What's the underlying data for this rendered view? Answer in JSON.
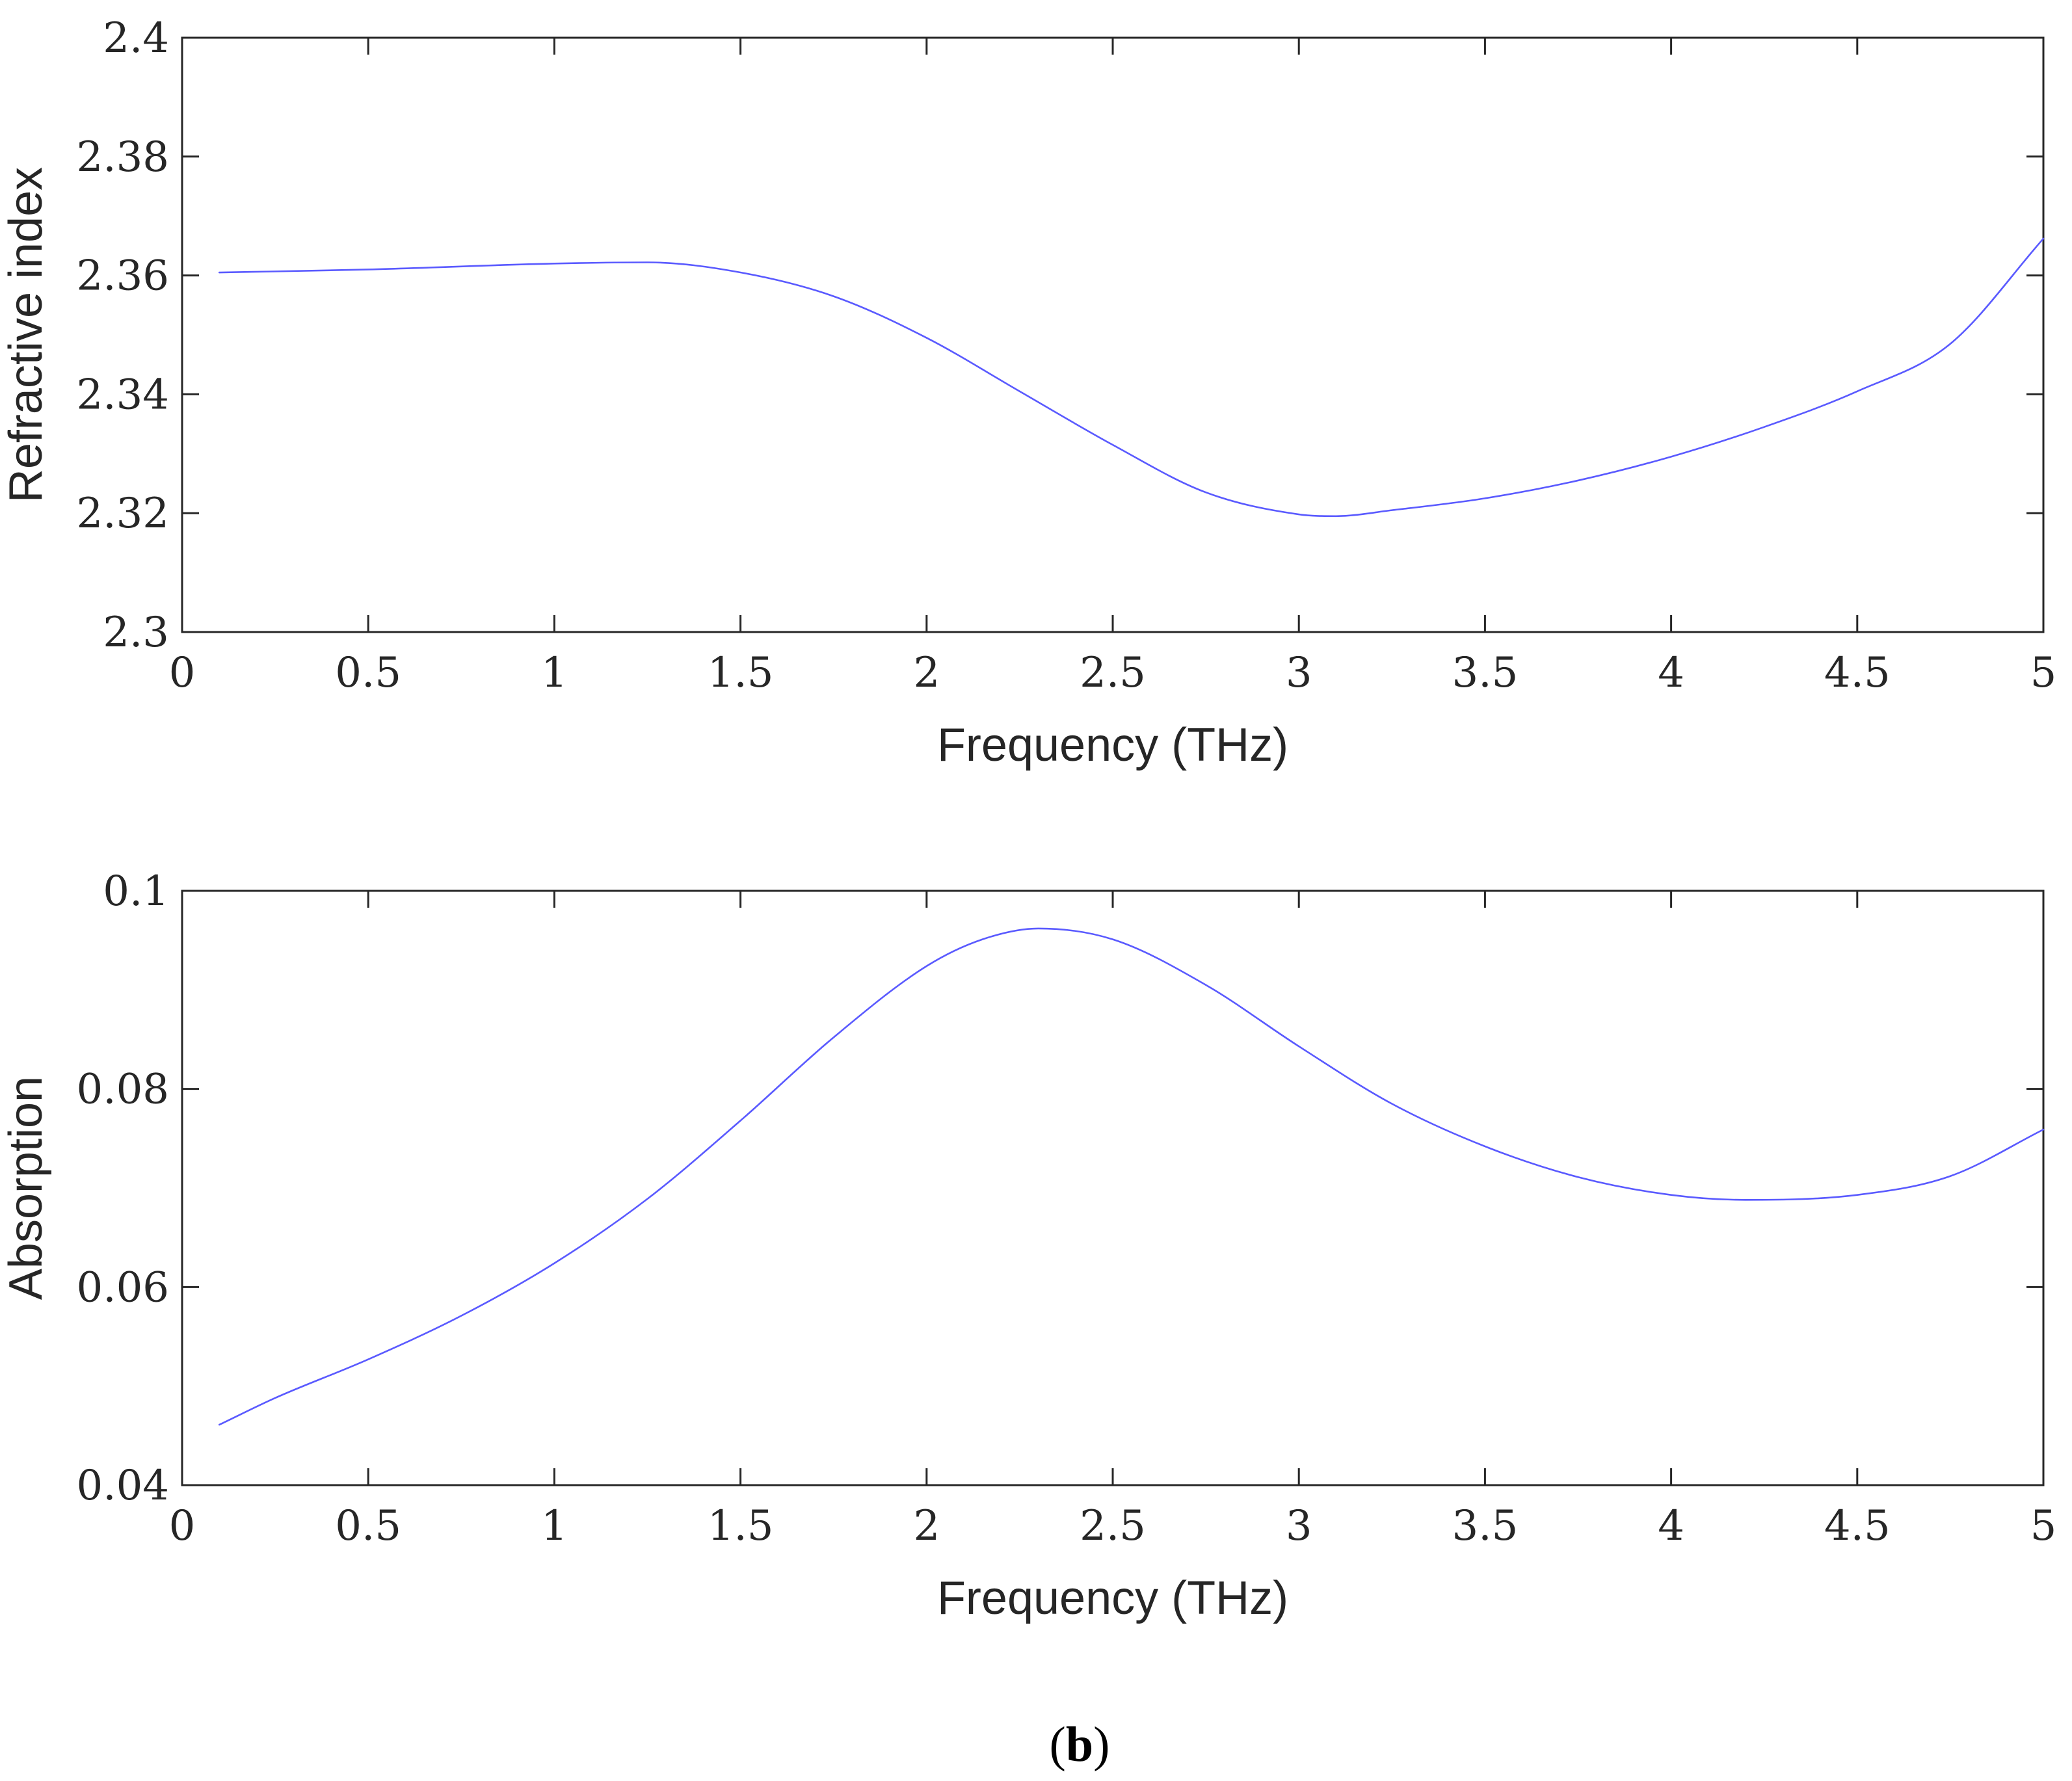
{
  "chart_data": [
    {
      "type": "line",
      "title": "",
      "xlabel": "Frequency (THz)",
      "ylabel": "Refractive index",
      "xlim": [
        0,
        5
      ],
      "ylim": [
        2.3,
        2.4
      ],
      "xticks": [
        0,
        0.5,
        1,
        1.5,
        2,
        2.5,
        3,
        3.5,
        4,
        4.5,
        5
      ],
      "xtick_labels": [
        "0",
        "0.5",
        "1",
        "1.5",
        "2",
        "2.5",
        "3",
        "3.5",
        "4",
        "4.5",
        "5"
      ],
      "yticks": [
        2.3,
        2.32,
        2.34,
        2.36,
        2.38,
        2.4
      ],
      "ytick_labels": [
        "2.3",
        "2.32",
        "2.34",
        "2.36",
        "2.38",
        "2.4"
      ],
      "grid": false,
      "series": [
        {
          "name": "Refractive index",
          "color": "#5a5aff",
          "x": [
            0.1,
            0.5,
            1.0,
            1.25,
            1.5,
            1.75,
            2.0,
            2.25,
            2.5,
            2.75,
            3.0,
            3.1,
            3.25,
            3.5,
            3.75,
            4.0,
            4.25,
            4.5,
            4.75,
            5.0
          ],
          "y": [
            2.3605,
            2.361,
            2.362,
            2.3622,
            2.3605,
            2.3565,
            2.3495,
            2.3405,
            2.3315,
            2.3235,
            2.3198,
            2.3195,
            2.3205,
            2.3225,
            2.3255,
            2.3295,
            2.3345,
            2.3405,
            2.3485,
            2.3662
          ]
        }
      ]
    },
    {
      "type": "line",
      "title": "",
      "xlabel": "Frequency (THz)",
      "ylabel": "Absorption",
      "xlim": [
        0,
        5
      ],
      "ylim": [
        0.04,
        0.1
      ],
      "xticks": [
        0,
        0.5,
        1,
        1.5,
        2,
        2.5,
        3,
        3.5,
        4,
        4.5,
        5
      ],
      "xtick_labels": [
        "0",
        "0.5",
        "1",
        "1.5",
        "2",
        "2.5",
        "3",
        "3.5",
        "4",
        "4.5",
        "5"
      ],
      "yticks": [
        0.04,
        0.06,
        0.08,
        0.1
      ],
      "ytick_labels": [
        "0.04",
        "0.06",
        "0.08",
        "0.1"
      ],
      "grid": false,
      "series": [
        {
          "name": "Absorption",
          "color": "#5a5aff",
          "x": [
            0.1,
            0.25,
            0.5,
            0.75,
            1.0,
            1.25,
            1.5,
            1.75,
            2.0,
            2.15,
            2.3,
            2.5,
            2.75,
            3.0,
            3.25,
            3.5,
            3.75,
            4.0,
            4.2,
            4.5,
            4.75,
            5.0
          ],
          "y": [
            0.0461,
            0.0488,
            0.0527,
            0.0571,
            0.0624,
            0.0689,
            0.0768,
            0.0852,
            0.0924,
            0.0951,
            0.0962,
            0.0951,
            0.0905,
            0.0843,
            0.0785,
            0.0742,
            0.0711,
            0.0693,
            0.0688,
            0.0693,
            0.0712,
            0.0759
          ]
        }
      ]
    }
  ],
  "caption": {
    "open": "(",
    "letter": "b",
    "close": ")"
  }
}
